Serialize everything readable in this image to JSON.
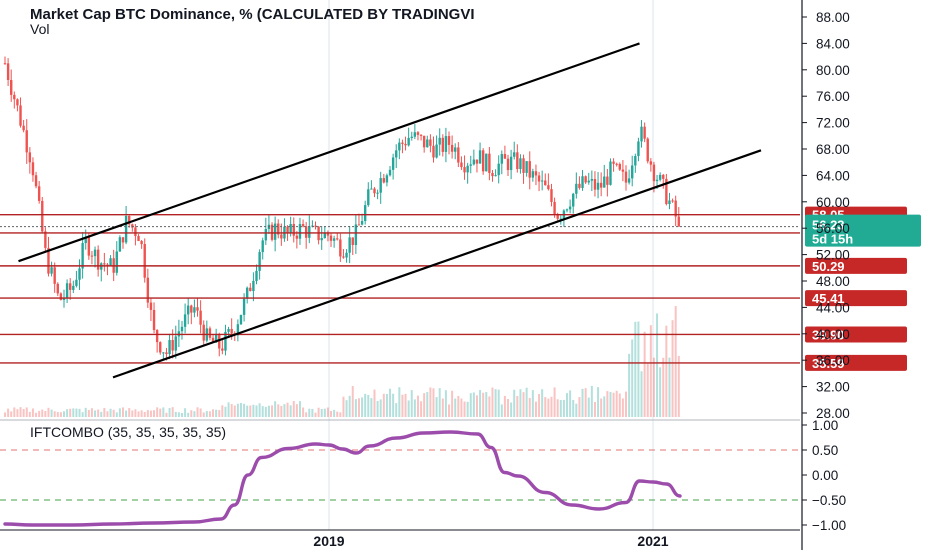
{
  "chart_data": {
    "type": "candlestick",
    "title": "Market Cap BTC Dominance, % (CALCULATED BY TRADINGVI",
    "volume_label": "Vol",
    "y_ticks": [
      "88.00",
      "84.00",
      "80.00",
      "76.00",
      "72.00",
      "68.00",
      "64.00",
      "60.00",
      "56.00",
      "52.00",
      "48.00",
      "44.00",
      "40.00",
      "36.00",
      "32.00",
      "28.00"
    ],
    "x_ticks": [
      "2019",
      "2021"
    ],
    "horizontal_levels": [
      {
        "value": 58.05,
        "label": "58.05"
      },
      {
        "value": 55.28,
        "label": "55.28"
      },
      {
        "value": 50.29,
        "label": "50.29"
      },
      {
        "value": 45.41,
        "label": "45.41"
      },
      {
        "value": 39.9,
        "label": "39.90"
      },
      {
        "value": 35.59,
        "label": "35.59"
      }
    ],
    "current_price": {
      "value": 56.23,
      "label": "56.23",
      "countdown": "5d 15h"
    },
    "channel": {
      "upper": [
        {
          "date": "2017-02",
          "value": 51.0
        },
        {
          "date": "2020-12",
          "value": 84.0
        }
      ],
      "lower": [
        {
          "date": "2017-09",
          "value": 33.4
        },
        {
          "date": "2021-09",
          "value": 67.8
        }
      ]
    },
    "close_path": [
      [
        "2017-01",
        81
      ],
      [
        "2017-03",
        66
      ],
      [
        "2017-04",
        52
      ],
      [
        "2017-05",
        45
      ],
      [
        "2017-06",
        47
      ],
      [
        "2017-07",
        54
      ],
      [
        "2017-08",
        51
      ],
      [
        "2017-09",
        50
      ],
      [
        "2017-10",
        57
      ],
      [
        "2017-11",
        55
      ],
      [
        "2017-12",
        40
      ],
      [
        "2018-01",
        37
      ],
      [
        "2018-02",
        41
      ],
      [
        "2018-03",
        44
      ],
      [
        "2018-04",
        39
      ],
      [
        "2018-05",
        38
      ],
      [
        "2018-06",
        41
      ],
      [
        "2018-07",
        46
      ],
      [
        "2018-08",
        54
      ],
      [
        "2018-09",
        56
      ],
      [
        "2018-10",
        55
      ],
      [
        "2018-11",
        56
      ],
      [
        "2018-12",
        55
      ],
      [
        "2019-01",
        55
      ],
      [
        "2019-02",
        53
      ],
      [
        "2019-03",
        55
      ],
      [
        "2019-04",
        61
      ],
      [
        "2019-05",
        64
      ],
      [
        "2019-06",
        68
      ],
      [
        "2019-07",
        70
      ],
      [
        "2019-08",
        69
      ],
      [
        "2019-09",
        68
      ],
      [
        "2019-10",
        69
      ],
      [
        "2019-11",
        66
      ],
      [
        "2019-12",
        67
      ],
      [
        "2020-01",
        65
      ],
      [
        "2020-02",
        66
      ],
      [
        "2020-03",
        66
      ],
      [
        "2020-04",
        64
      ],
      [
        "2020-05",
        62
      ],
      [
        "2020-06",
        58
      ],
      [
        "2020-07",
        61
      ],
      [
        "2020-08",
        63
      ],
      [
        "2020-09",
        62
      ],
      [
        "2020-10",
        65
      ],
      [
        "2020-11",
        63
      ],
      [
        "2020-12",
        71
      ],
      [
        "2021-01",
        65
      ],
      [
        "2021-02",
        61
      ],
      [
        "2021-03",
        56.2
      ]
    ],
    "indicator": {
      "name": "IFTCOMBO (35, 35, 35, 35, 35)",
      "y_ticks": [
        "1.00",
        "0.50",
        "0.00",
        "−0.50",
        "−1.00"
      ],
      "reference_levels": [
        0.5,
        -0.5
      ],
      "series": [
        [
          "2017-01",
          -0.98
        ],
        [
          "2017-03",
          -1.0
        ],
        [
          "2017-06",
          -1.0
        ],
        [
          "2017-09",
          -0.98
        ],
        [
          "2017-12",
          -0.96
        ],
        [
          "2018-03",
          -0.94
        ],
        [
          "2018-05",
          -0.88
        ],
        [
          "2018-06",
          -0.6
        ],
        [
          "2018-07",
          0.0
        ],
        [
          "2018-08",
          0.35
        ],
        [
          "2018-10",
          0.53
        ],
        [
          "2018-12",
          0.62
        ],
        [
          "2019-01",
          0.6
        ],
        [
          "2019-02",
          0.52
        ],
        [
          "2019-03",
          0.44
        ],
        [
          "2019-04",
          0.58
        ],
        [
          "2019-06",
          0.74
        ],
        [
          "2019-08",
          0.84
        ],
        [
          "2019-10",
          0.86
        ],
        [
          "2019-12",
          0.82
        ],
        [
          "2020-01",
          0.55
        ],
        [
          "2020-02",
          0.05
        ],
        [
          "2020-03",
          -0.02
        ],
        [
          "2020-05",
          -0.35
        ],
        [
          "2020-07",
          -0.6
        ],
        [
          "2020-09",
          -0.68
        ],
        [
          "2020-11",
          -0.55
        ],
        [
          "2020-12",
          -0.12
        ],
        [
          "2021-01",
          -0.14
        ],
        [
          "2021-02",
          -0.18
        ],
        [
          "2021-03",
          -0.42
        ]
      ]
    },
    "colors": {
      "up": "#26a69a",
      "down": "#ef5350",
      "level": "#b22222",
      "channel": "#000000",
      "indicator": "#9c4dab",
      "current": "#22ab94"
    }
  }
}
